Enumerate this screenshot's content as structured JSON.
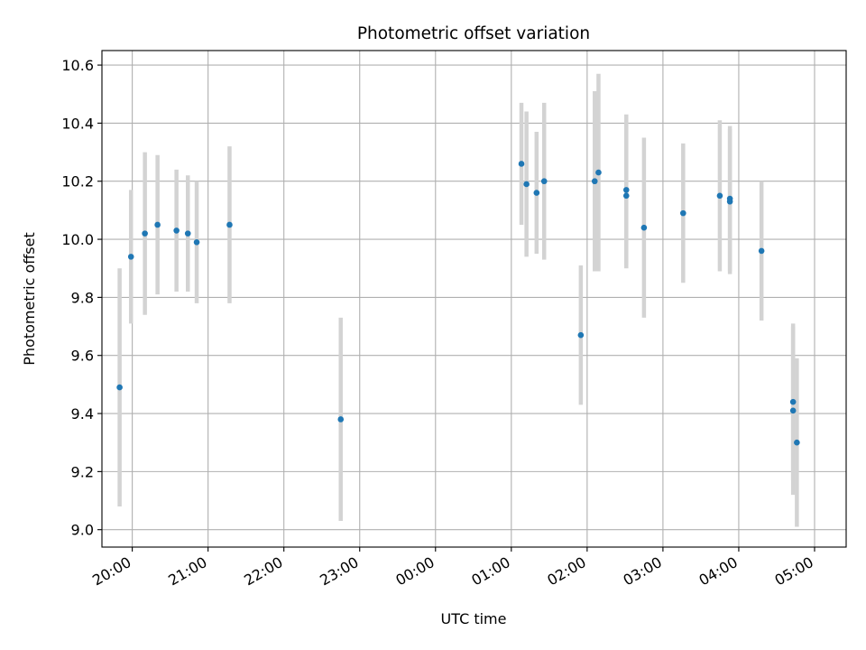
{
  "chart_data": {
    "type": "scatter",
    "title": "Photometric offset variation",
    "xlabel": "UTC time",
    "ylabel": "Photometric offset",
    "grid": true,
    "x_ticks": [
      "20:00",
      "21:00",
      "22:00",
      "23:00",
      "00:00",
      "01:00",
      "02:00",
      "03:00",
      "04:00",
      "05:00"
    ],
    "y_ticks": [
      "9.0",
      "9.2",
      "9.4",
      "9.6",
      "9.8",
      "10.0",
      "10.2",
      "10.4",
      "10.6"
    ],
    "xlim": [
      "19:36",
      "05:25"
    ],
    "ylim": [
      8.94,
      10.65
    ],
    "point_color": "#1f77b4",
    "errorbar_color": "#d3d3d3",
    "points": [
      {
        "x": "19:50",
        "y": 9.49,
        "err": 0.41
      },
      {
        "x": "19:59",
        "y": 9.94,
        "err": 0.23
      },
      {
        "x": "20:10",
        "y": 10.02,
        "err": 0.28
      },
      {
        "x": "20:20",
        "y": 10.05,
        "err": 0.24
      },
      {
        "x": "20:35",
        "y": 10.03,
        "err": 0.21
      },
      {
        "x": "20:44",
        "y": 10.02,
        "err": 0.2
      },
      {
        "x": "20:51",
        "y": 9.99,
        "err": 0.21
      },
      {
        "x": "21:17",
        "y": 10.05,
        "err": 0.27
      },
      {
        "x": "22:45",
        "y": 9.38,
        "err": 0.35
      },
      {
        "x": "01:08",
        "y": 10.26,
        "err": 0.21
      },
      {
        "x": "01:12",
        "y": 10.19,
        "err": 0.25
      },
      {
        "x": "01:20",
        "y": 10.16,
        "err": 0.21
      },
      {
        "x": "01:26",
        "y": 10.2,
        "err": 0.27
      },
      {
        "x": "01:55",
        "y": 9.67,
        "err": 0.24
      },
      {
        "x": "02:06",
        "y": 10.2,
        "err": 0.31
      },
      {
        "x": "02:09",
        "y": 10.23,
        "err": 0.34
      },
      {
        "x": "02:31",
        "y": 10.17,
        "err": 0.26
      },
      {
        "x": "02:31",
        "y": 10.15,
        "err": 0.25
      },
      {
        "x": "02:45",
        "y": 10.04,
        "err": 0.31
      },
      {
        "x": "03:16",
        "y": 10.09,
        "err": 0.24
      },
      {
        "x": "03:45",
        "y": 10.15,
        "err": 0.26
      },
      {
        "x": "03:53",
        "y": 10.14,
        "err": 0.25
      },
      {
        "x": "03:53",
        "y": 10.13,
        "err": 0.25
      },
      {
        "x": "04:18",
        "y": 9.96,
        "err": 0.24
      },
      {
        "x": "04:43",
        "y": 9.44,
        "err": 0.27
      },
      {
        "x": "04:43",
        "y": 9.41,
        "err": 0.29
      },
      {
        "x": "04:46",
        "y": 9.3,
        "err": 0.29
      }
    ]
  }
}
